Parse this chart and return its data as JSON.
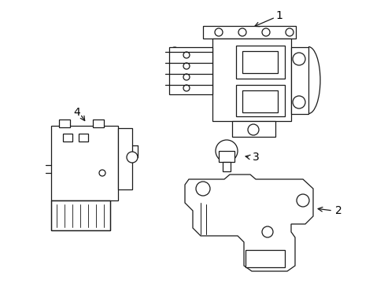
{
  "bg_color": "#ffffff",
  "line_color": "#1a1a1a",
  "line_width": 0.9,
  "label_color": "#000000",
  "figsize": [
    4.89,
    3.6
  ],
  "dpi": 100
}
